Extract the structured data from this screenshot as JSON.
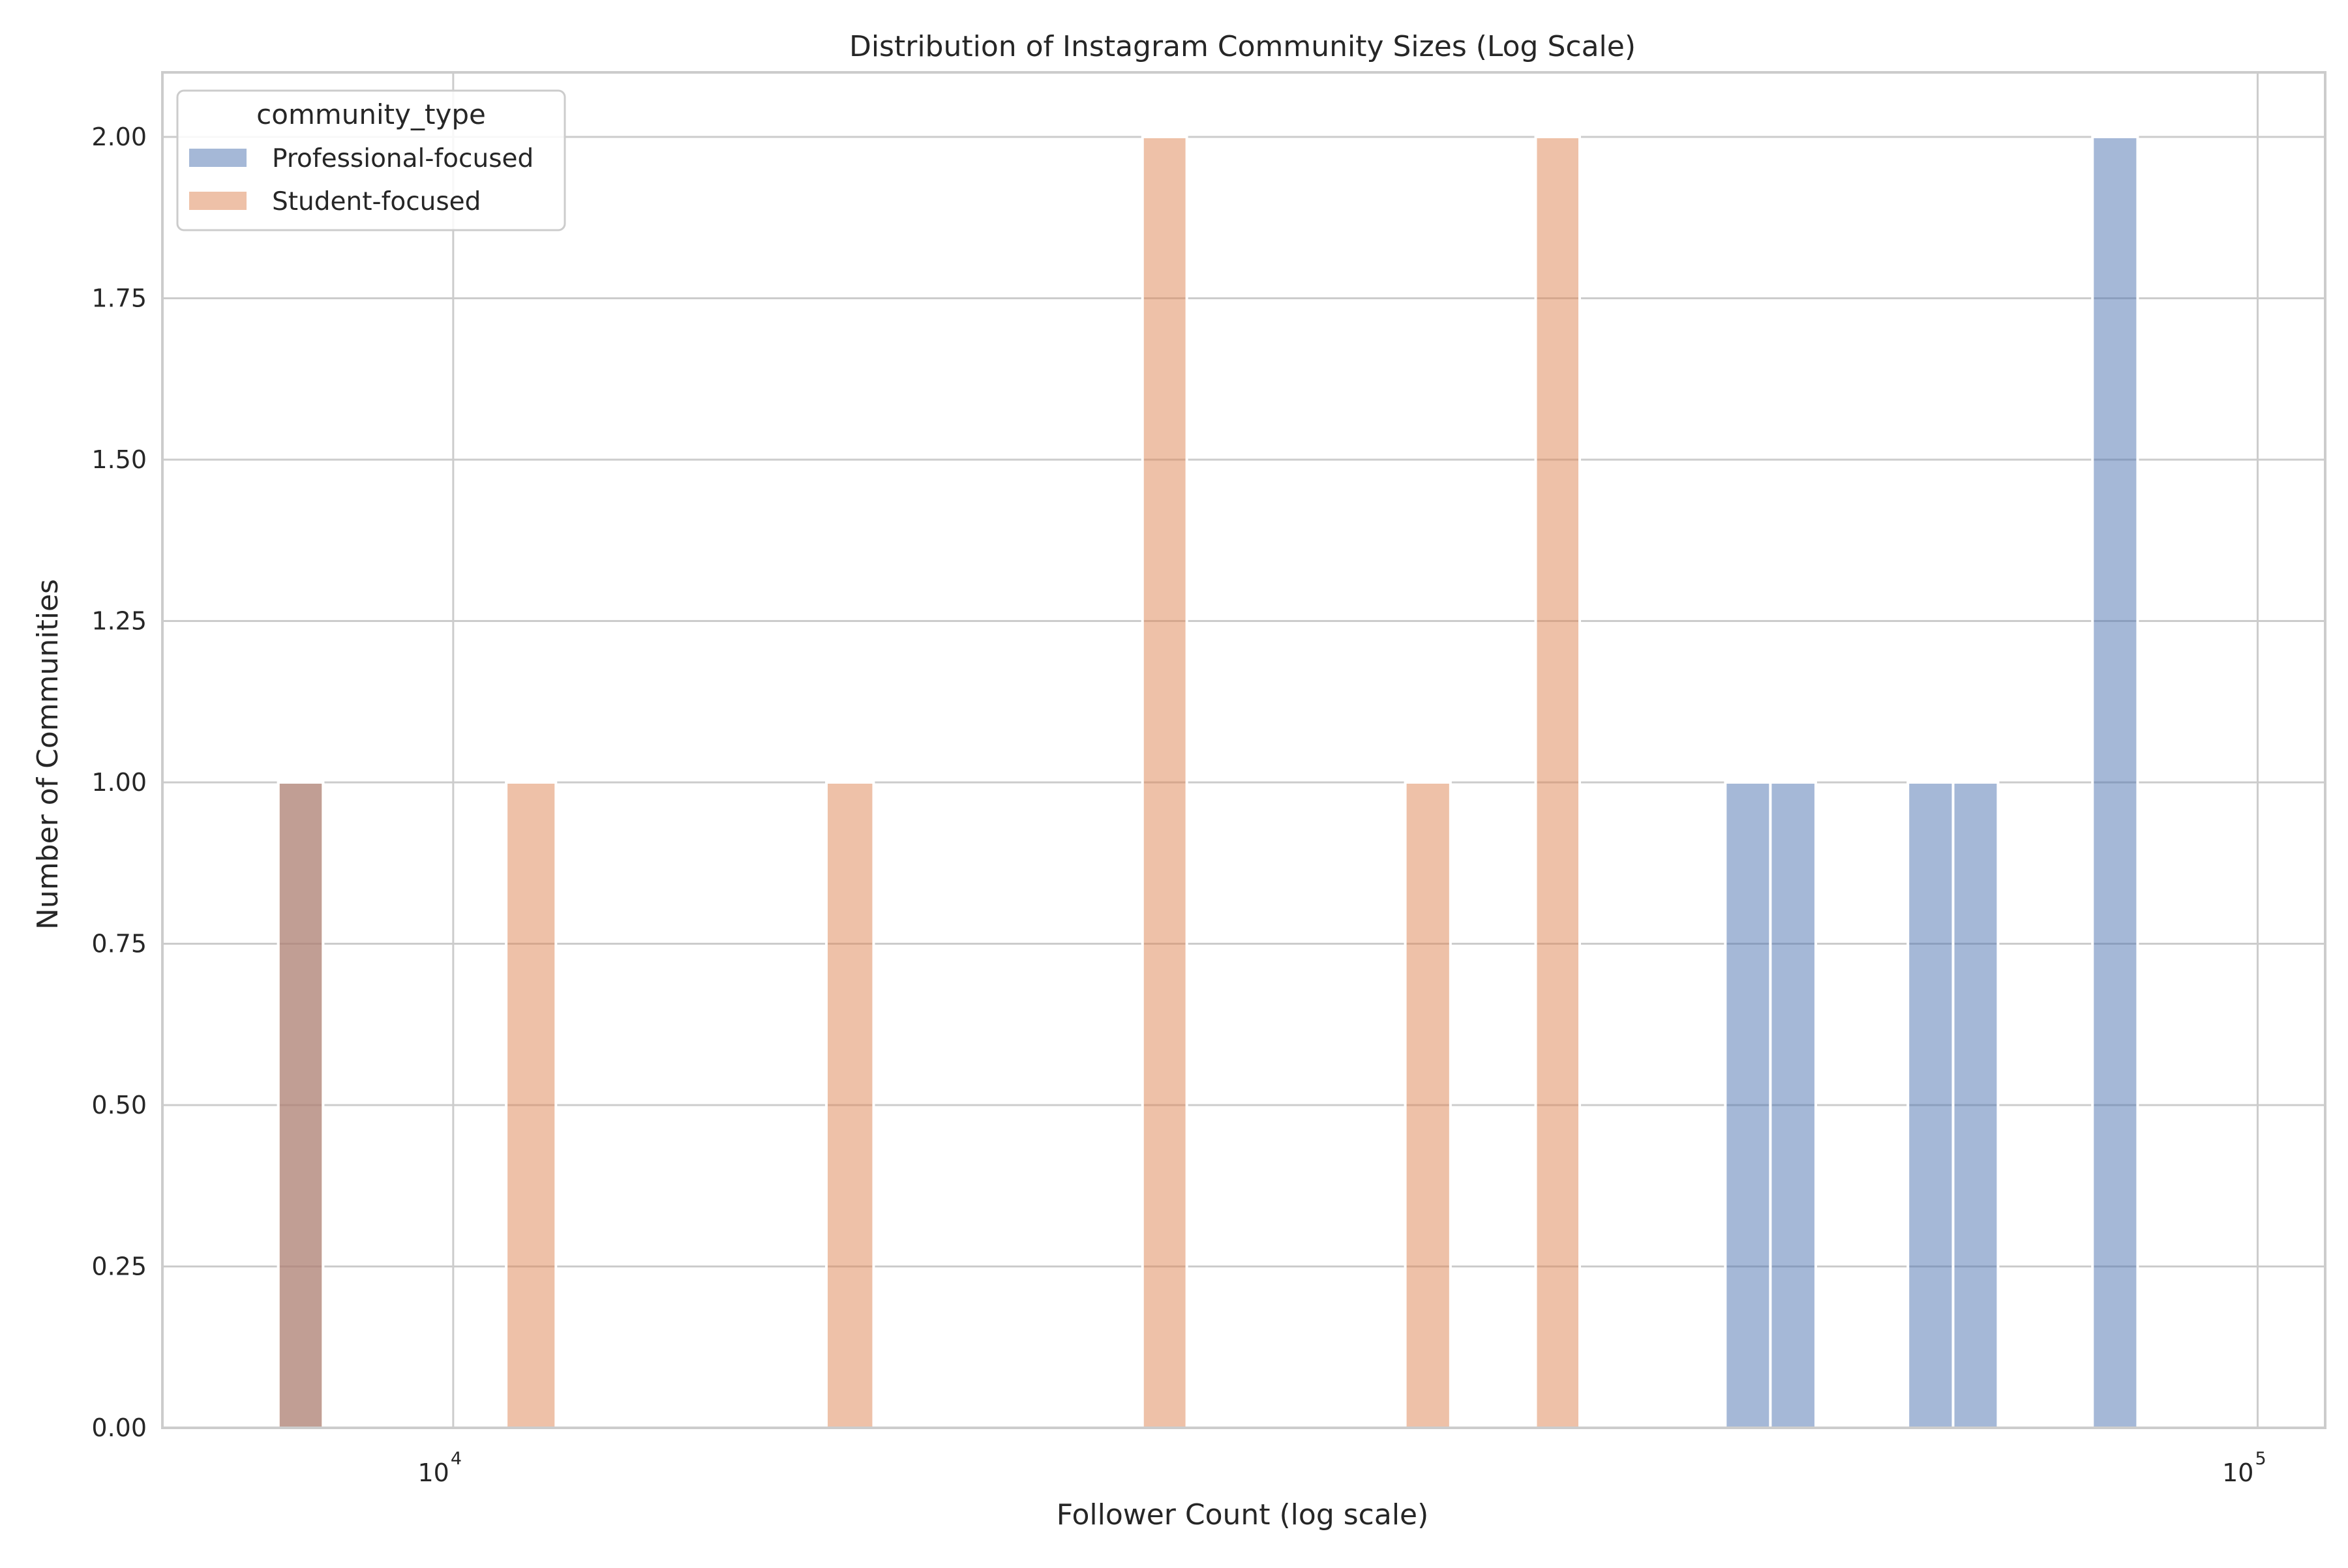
{
  "chart_data": {
    "type": "bar",
    "title": "Distribution of Instagram Community Sizes (Log Scale)",
    "xlabel": "Follower Count (log scale)",
    "ylabel": "Number of Communities",
    "x_scale": "log",
    "xlim": [
      6900,
      109000
    ],
    "ylim": [
      0,
      2.1
    ],
    "y_ticks": [
      "0.00",
      "0.25",
      "0.50",
      "0.75",
      "1.00",
      "1.25",
      "1.50",
      "1.75",
      "2.00"
    ],
    "x_ticks": [
      {
        "value": 10000,
        "base": "10",
        "exp": "4"
      },
      {
        "value": 100000,
        "base": "10",
        "exp": "5"
      }
    ],
    "grid": true,
    "legend": {
      "title": "community_type",
      "position": "top-left",
      "entries": [
        {
          "name": "Professional-focused",
          "color": "#4c72b0"
        },
        {
          "name": "Student-focused",
          "color": "#dd8452"
        }
      ]
    },
    "series": [
      {
        "name": "Professional-focused",
        "color": "#4c72b0",
        "bins": [
          {
            "x0": 8000,
            "x1": 8470,
            "count": 1
          },
          {
            "x0": 50700,
            "x1": 53700,
            "count": 1
          },
          {
            "x0": 53700,
            "x1": 56900,
            "count": 1
          },
          {
            "x0": 64000,
            "x1": 67800,
            "count": 1
          },
          {
            "x0": 67800,
            "x1": 71800,
            "count": 1
          },
          {
            "x0": 81000,
            "x1": 85800,
            "count": 2
          }
        ]
      },
      {
        "name": "Student-focused",
        "color": "#dd8452",
        "bins": [
          {
            "x0": 8000,
            "x1": 8470,
            "count": 1
          },
          {
            "x0": 10700,
            "x1": 11400,
            "count": 1
          },
          {
            "x0": 16100,
            "x1": 17100,
            "count": 1
          },
          {
            "x0": 24100,
            "x1": 25500,
            "count": 2
          },
          {
            "x0": 33700,
            "x1": 35700,
            "count": 1
          },
          {
            "x0": 39800,
            "x1": 42100,
            "count": 2
          }
        ]
      }
    ]
  }
}
